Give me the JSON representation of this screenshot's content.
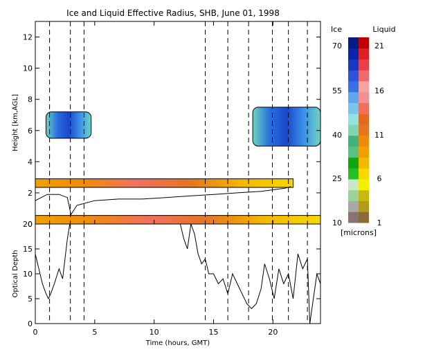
{
  "title": "Ice and Liquid Effective Radius, SHB, June 01, 1998",
  "colors": {
    "ice_scale": [
      "#8b7373",
      "#a8a8a8",
      "#9bd39b",
      "#c8e6c8",
      "#26c026",
      "#0fa70f",
      "#59c284",
      "#3fb37a",
      "#7fd7b2",
      "#8fe4e0",
      "#77c6f0",
      "#5fa8f0",
      "#3a70e6",
      "#2a55d6",
      "#1638c4",
      "#0b25a8",
      "#061c82"
    ],
    "liquid_scale": [
      "#8b6b3c",
      "#b39a1a",
      "#c9b80e",
      "#f2f200",
      "#f7d800",
      "#f3b800",
      "#f0a000",
      "#ee8a10",
      "#e67520",
      "#e36a20",
      "#f07060",
      "#f59090",
      "#f4a3a3",
      "#ef6b6b",
      "#e8404a",
      "#e02020",
      "#c00000"
    ]
  },
  "chart_data": [
    {
      "type": "heatmap",
      "title": "Ice and Liquid Effective Radius, SHB, June 01, 1998",
      "xlabel": "",
      "ylabel": "Height [km,AGL]",
      "xlim": [
        0,
        24
      ],
      "ylim": [
        0,
        13
      ],
      "yticks": [
        0,
        2,
        4,
        6,
        8,
        10,
        12
      ],
      "dashed_lines_x": [
        1.2,
        2.95,
        4.1,
        14.3,
        16.2,
        17.95,
        19.95,
        21.3,
        22.9
      ],
      "colorbar": {
        "ice_label": "Ice",
        "liquid_label": "Liquid",
        "units": "[microns]",
        "ice_ticks": [
          "70",
          "55",
          "40",
          "25",
          "10"
        ],
        "liquid_ticks": [
          "21",
          "16",
          "11",
          "6",
          "1"
        ]
      },
      "layers": [
        {
          "name": "ice cloud",
          "x": [
            0.9,
            4.7
          ],
          "y": [
            5.5,
            7.2
          ]
        },
        {
          "name": "ice cloud",
          "x": [
            18.3,
            24.0
          ],
          "y": [
            5.0,
            7.5
          ]
        },
        {
          "name": "liquid layer",
          "x": [
            0.0,
            21.7
          ],
          "y": [
            2.35,
            2.9
          ]
        },
        {
          "name": "liquid layer",
          "x": [
            0.0,
            24.0
          ],
          "y": [
            0.0,
            0.55
          ]
        }
      ],
      "cloud_base_line": {
        "x": [
          0,
          1,
          2,
          2.7,
          3,
          3.5,
          5,
          7,
          9,
          11,
          13,
          15,
          17,
          19,
          21,
          21.5
        ],
        "y": [
          1.5,
          1.9,
          1.9,
          1.7,
          0.6,
          1.2,
          1.5,
          1.6,
          1.6,
          1.7,
          1.8,
          1.9,
          2.0,
          2.1,
          2.3,
          2.4
        ]
      }
    },
    {
      "type": "line",
      "xlabel": "Time (hours, GMT)",
      "ylabel": "Optical Depth",
      "xlim": [
        0,
        24
      ],
      "ylim": [
        0,
        20
      ],
      "xticks": [
        0,
        5,
        10,
        15,
        20
      ],
      "yticks": [
        0,
        5,
        10,
        15,
        20
      ],
      "dashed_lines_x": [
        1.2,
        2.95,
        4.1,
        14.3,
        16.2,
        17.95,
        19.95,
        21.3,
        22.9
      ],
      "x": [
        0,
        0.3,
        0.6,
        0.9,
        1.1,
        1.3,
        1.6,
        2.0,
        2.3,
        2.5,
        2.7,
        2.9,
        3.0,
        3.2,
        12.2,
        12.5,
        12.8,
        13.1,
        13.4,
        13.7,
        14.0,
        14.3,
        14.6,
        15.0,
        15.4,
        15.8,
        16.2,
        16.6,
        17.0,
        17.4,
        17.8,
        18.2,
        18.6,
        19.0,
        19.3,
        19.7,
        20.1,
        20.5,
        20.9,
        21.3,
        21.7,
        22.1,
        22.5,
        22.9,
        23.1,
        23.4,
        23.7,
        24.0
      ],
      "y": [
        14,
        11,
        8,
        6,
        5,
        6,
        8,
        11,
        9,
        13,
        17,
        20,
        20,
        20,
        20,
        17,
        15,
        20,
        18,
        14,
        12,
        13,
        10,
        10,
        8,
        9,
        6,
        10,
        8,
        6,
        4,
        3,
        4,
        7,
        12,
        9,
        5,
        11,
        8,
        10,
        5,
        14,
        11,
        13,
        0,
        5,
        10,
        8
      ]
    }
  ]
}
